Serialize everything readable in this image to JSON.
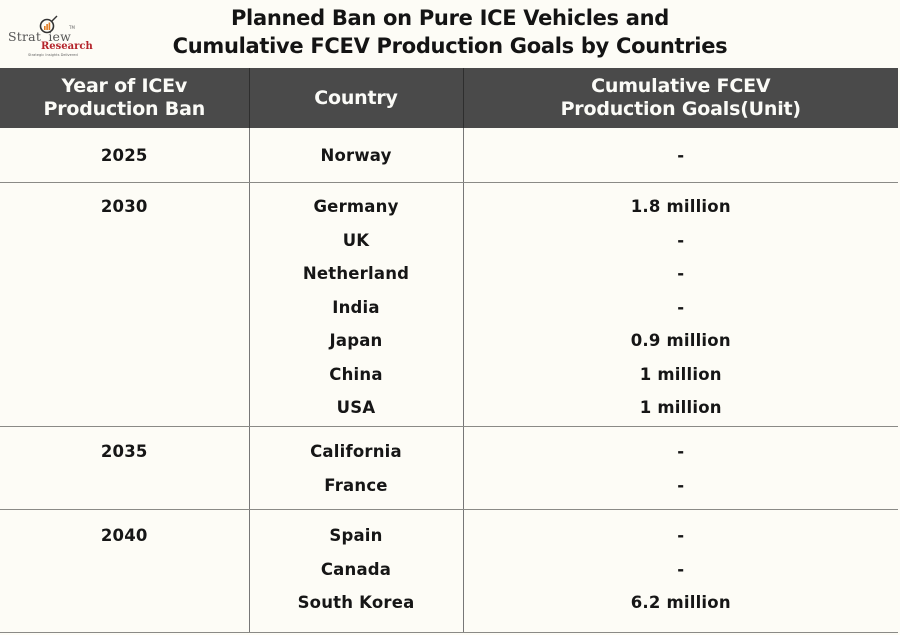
{
  "logo": {
    "brand": "Stratview",
    "trademark": "TM",
    "sub_brand": "Research",
    "tagline": "Strategic Insights Delivered"
  },
  "title": {
    "line1": "Planned Ban on Pure ICE Vehicles and",
    "line2": "Cumulative FCEV Production Goals by Countries"
  },
  "table": {
    "headers": [
      {
        "line1": "Year of ICEv",
        "line2": "Production Ban"
      },
      {
        "line1": "Country",
        "line2": ""
      },
      {
        "line1": "Cumulative FCEV",
        "line2": "Production Goals(Unit)"
      }
    ],
    "groups": [
      {
        "year": "2025",
        "countries": [
          "Norway"
        ],
        "goals": [
          "-"
        ]
      },
      {
        "year": "2030",
        "countries": [
          "Germany",
          "UK",
          "Netherland",
          "India",
          "Japan",
          "China",
          "USA"
        ],
        "goals": [
          "1.8 million",
          "-",
          "-",
          "-",
          "0.9 million",
          "1 million",
          "1 million"
        ]
      },
      {
        "year": "2035",
        "countries": [
          "California",
          "France"
        ],
        "goals": [
          "-",
          "-"
        ]
      },
      {
        "year": "2040",
        "countries": [
          "Spain",
          "Canada",
          "South Korea"
        ],
        "goals": [
          "-",
          "-",
          "6.2 million"
        ]
      }
    ]
  },
  "colors": {
    "header_bg": "#4a4a4a",
    "page_bg": "#fdfcf6",
    "logo_red": "#b4232a"
  }
}
